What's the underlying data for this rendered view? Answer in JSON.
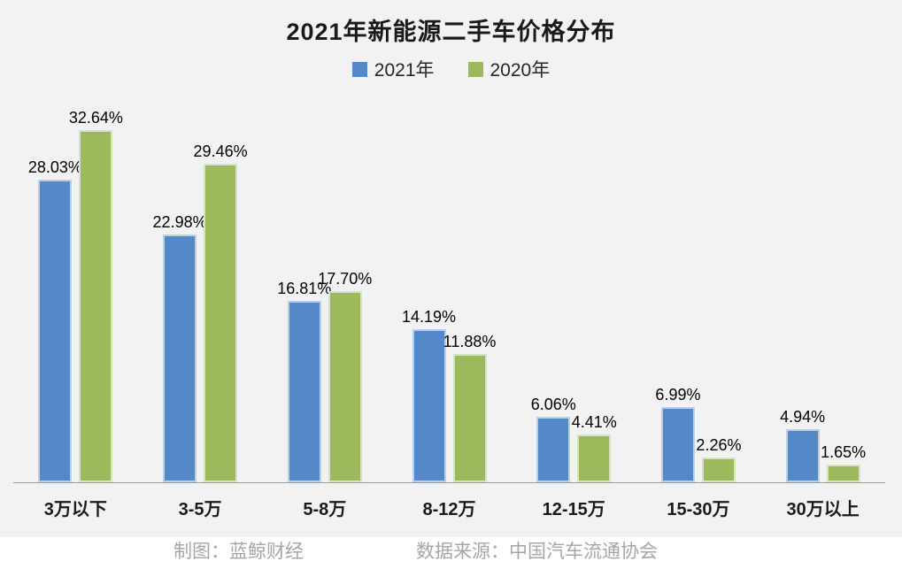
{
  "title": "2021年新能源二手车价格分布",
  "legend": [
    {
      "label": "2021年",
      "color": "#5389c8"
    },
    {
      "label": "2020年",
      "color": "#9cba5b"
    }
  ],
  "footer": {
    "credit": "制图：蓝鲸财经",
    "source": "数据来源：中国汽车流通协会"
  },
  "colors": {
    "background": "#f2f2f2",
    "footer_background": "#ffffff",
    "axis_line": "#9b9b9b",
    "label_text": "#000000",
    "footer_text": "#a6a6a6"
  },
  "chart_data": {
    "type": "bar",
    "title": "2021年新能源二手车价格分布",
    "categories": [
      "3万以下",
      "3-5万",
      "5-8万",
      "8-12万",
      "12-15万",
      "15-30万",
      "30万以上"
    ],
    "series": [
      {
        "name": "2021年",
        "color": "#5389c8",
        "values": [
          28.03,
          22.98,
          16.81,
          14.19,
          6.06,
          6.99,
          4.94
        ]
      },
      {
        "name": "2020年",
        "color": "#9cba5b",
        "values": [
          32.64,
          29.46,
          17.7,
          11.88,
          4.41,
          2.26,
          1.65
        ]
      }
    ],
    "value_suffix": "%",
    "data_labels": true,
    "data_label_decimals": 2,
    "xlabel": "",
    "ylabel": "",
    "ylim": [
      0,
      35.8
    ],
    "grid": false,
    "legend_position": "top"
  }
}
